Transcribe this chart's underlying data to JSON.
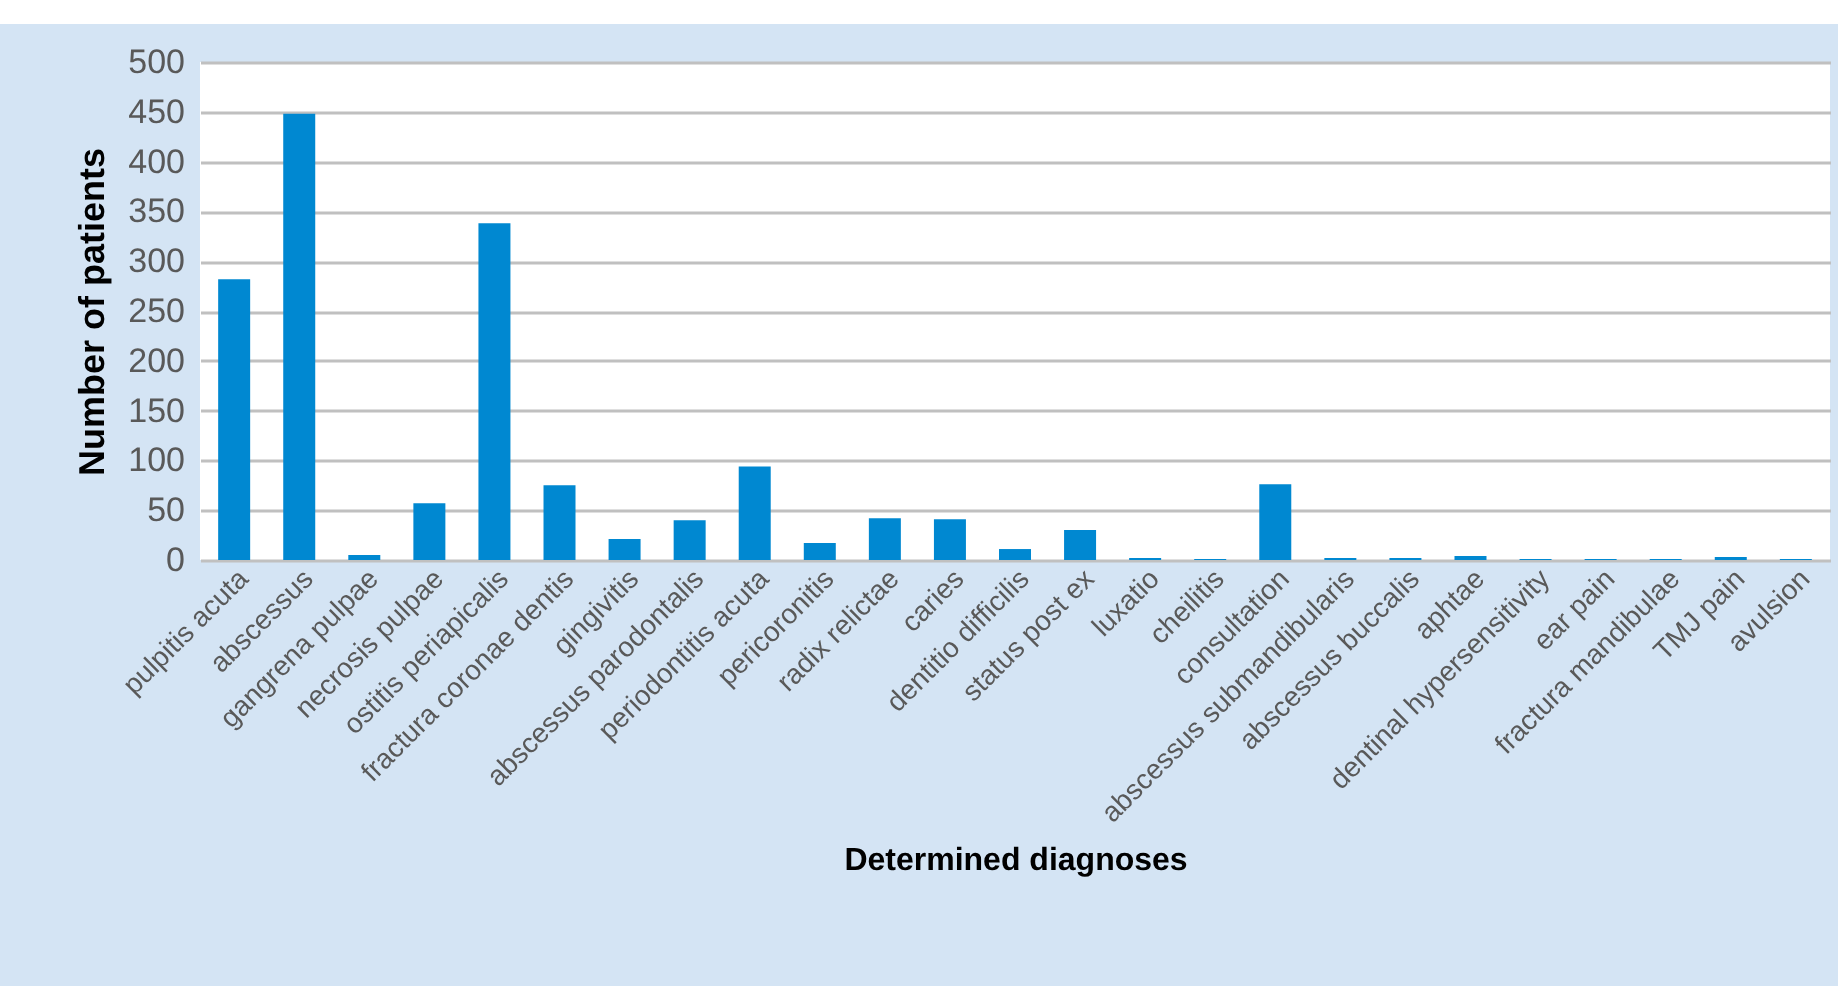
{
  "chart_data": {
    "type": "bar",
    "xlabel": "Determined diagnoses",
    "ylabel": "Number of patients",
    "categories": [
      "pulpitis acuta",
      "abscessus",
      "gangrena pulpae",
      "necrosis pulpae",
      "ostitis periapicalis",
      "fractura coronae dentis",
      "gingivitis",
      "abscessus parodontalis",
      "periodontitis acuta",
      "pericoronitis",
      "radix relictae",
      "caries",
      "dentitio difficilis",
      "status post ex",
      "luxatio",
      "cheilitis",
      "consultation",
      "abscessus submandibularis",
      "abscessus buccalis",
      "aphtae",
      "dentinal hypersensitivity",
      "ear pain",
      "fractura mandibulae",
      "TMJ pain",
      "avulsion"
    ],
    "values": [
      282,
      448,
      5,
      57,
      338,
      75,
      21,
      40,
      94,
      17,
      42,
      41,
      11,
      30,
      2,
      1,
      76,
      2,
      2,
      4,
      1,
      1,
      1,
      3,
      1
    ],
    "color": "#0088d1",
    "ylim": [
      0,
      500
    ],
    "yticks": [
      0,
      50,
      100,
      150,
      200,
      250,
      300,
      350,
      400,
      450,
      500
    ],
    "grid": "y"
  }
}
